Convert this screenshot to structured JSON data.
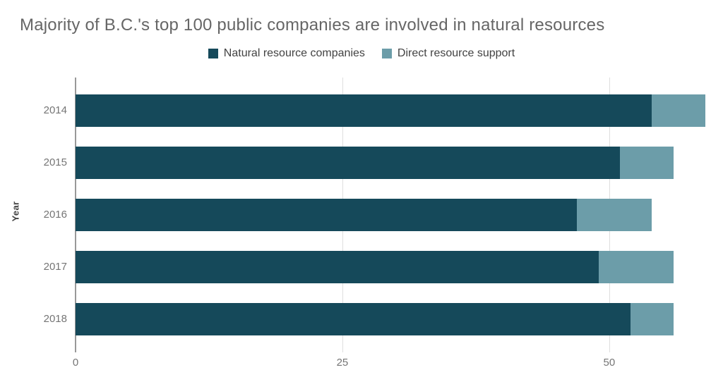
{
  "title": "Majority of B.C.'s top 100 public companies are involved in natural resources",
  "legend": {
    "items": [
      {
        "label": "Natural resource companies",
        "color": "#15495a"
      },
      {
        "label": "Direct resource support",
        "color": "#6c9da9"
      }
    ]
  },
  "axes": {
    "y_title": "Year",
    "x_tick_labels": [
      "0",
      "25",
      "50"
    ],
    "y_tick_labels": [
      "2014",
      "2015",
      "2016",
      "2017",
      "2018"
    ]
  },
  "colors": {
    "series_dark": "#15495a",
    "series_light": "#6c9da9",
    "title_text": "#666666",
    "tick_text": "#757575",
    "legend_text": "#424242",
    "axis_line": "#999999",
    "gridline": "#dedede",
    "background": "#ffffff"
  },
  "chart_data": {
    "type": "bar",
    "orientation": "horizontal",
    "stacked": true,
    "title": "Majority of B.C.'s top 100 public companies are involved in natural resources",
    "categories": [
      "2014",
      "2015",
      "2016",
      "2017",
      "2018"
    ],
    "series": [
      {
        "name": "Natural resource companies",
        "color": "#15495a",
        "values": [
          54,
          51,
          47,
          49,
          52
        ]
      },
      {
        "name": "Direct resource support",
        "color": "#6c9da9",
        "values": [
          5,
          5,
          7,
          7,
          4
        ]
      }
    ],
    "totals": [
      59,
      56,
      54,
      56,
      56
    ],
    "xlabel": "",
    "ylabel": "Year",
    "xlim": [
      0,
      60
    ],
    "xticks": [
      0,
      25,
      50
    ],
    "grid": true,
    "legend_position": "top"
  }
}
